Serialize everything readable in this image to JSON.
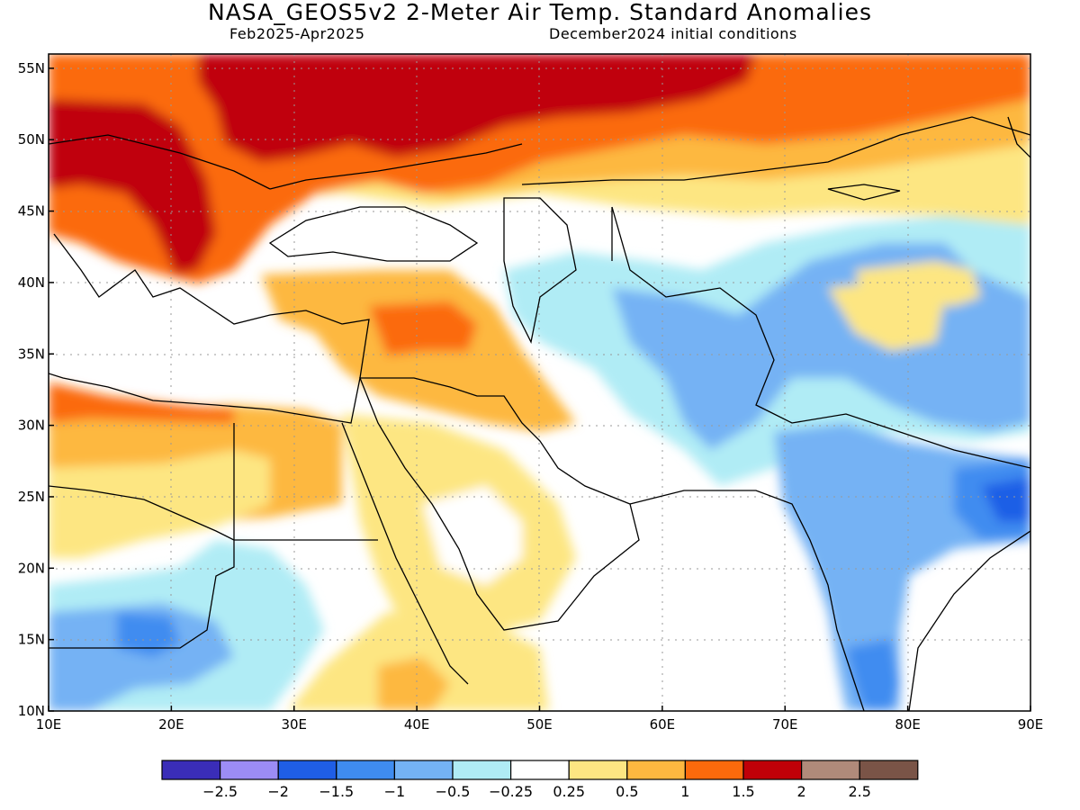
{
  "header": {
    "title": "NASA_GEOS5v2 2-Meter Air Temp. Standard Anomalies",
    "period": "Feb2025-Apr2025",
    "init": "December2024 initial conditions"
  },
  "map": {
    "lon_range": [
      10,
      90
    ],
    "lat_range": [
      10,
      56
    ],
    "lon_ticks": [
      {
        "value": 10,
        "label": "10E"
      },
      {
        "value": 20,
        "label": "20E"
      },
      {
        "value": 30,
        "label": "30E"
      },
      {
        "value": 40,
        "label": "40E"
      },
      {
        "value": 50,
        "label": "50E"
      },
      {
        "value": 60,
        "label": "60E"
      },
      {
        "value": 70,
        "label": "70E"
      },
      {
        "value": 80,
        "label": "80E"
      },
      {
        "value": 90,
        "label": "90E"
      }
    ],
    "lat_ticks": [
      {
        "value": 10,
        "label": "10N"
      },
      {
        "value": 15,
        "label": "15N"
      },
      {
        "value": 20,
        "label": "20N"
      },
      {
        "value": 25,
        "label": "25N"
      },
      {
        "value": 30,
        "label": "30N"
      },
      {
        "value": 35,
        "label": "35N"
      },
      {
        "value": 40,
        "label": "40N"
      },
      {
        "value": 45,
        "label": "45N"
      },
      {
        "value": 50,
        "label": "50N"
      },
      {
        "value": 55,
        "label": "55N"
      }
    ],
    "gridlines": true
  },
  "colorbar": {
    "colors": [
      "#3a2db8",
      "#9c8cf5",
      "#1f5ee6",
      "#3f8cf0",
      "#74b2f4",
      "#b0ecf5",
      "#ffffff",
      "#fde682",
      "#fdb840",
      "#fb6a0c",
      "#c00008",
      "#b08a7a",
      "#7a5447"
    ],
    "labels": [
      "-2.5",
      "-2",
      "-1.5",
      "-1",
      "-0.5",
      "-0.25",
      "0.25",
      "0.5",
      "1",
      "1.5",
      "2",
      "2.5"
    ]
  }
}
